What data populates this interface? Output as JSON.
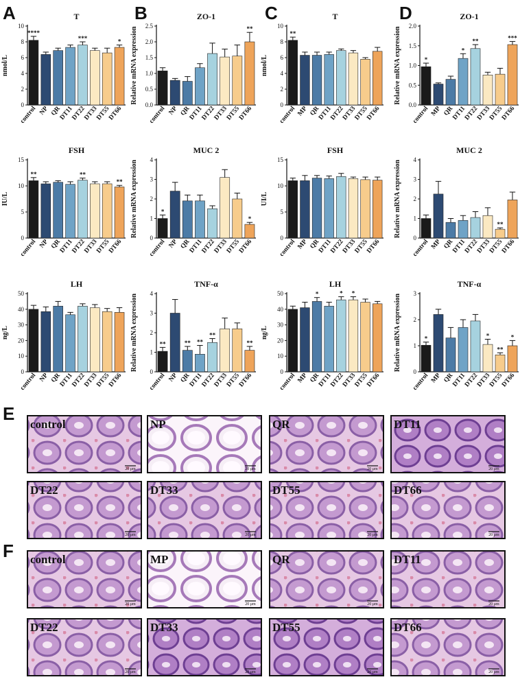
{
  "groups_np": [
    "control",
    "NP",
    "QR",
    "DT11",
    "DT22",
    "DT33",
    "DT55",
    "DT66"
  ],
  "groups_mp": [
    "control",
    "MP",
    "QR",
    "DT11",
    "DT22",
    "DT33",
    "DT55",
    "DT66"
  ],
  "colors": [
    "#1a1a1a",
    "#2d4a72",
    "#4c7ba6",
    "#6fa3c6",
    "#a6d2df",
    "#fbe9c2",
    "#f7cc8c",
    "#eea45a"
  ],
  "panel_letters": [
    "A",
    "B",
    "C",
    "D",
    "E",
    "F"
  ],
  "chart_data": [
    {
      "id": "A-T",
      "type": "bar",
      "title": "T",
      "ylabel": "nmol/L",
      "ylim": [
        0,
        10
      ],
      "yticks": [
        0,
        2,
        4,
        6,
        8,
        10
      ],
      "groupset": "np",
      "values": [
        8.2,
        6.4,
        6.9,
        7.3,
        7.6,
        6.9,
        6.6,
        7.3
      ],
      "errors": [
        0.5,
        0.3,
        0.3,
        0.3,
        0.4,
        0.3,
        0.6,
        0.3
      ],
      "stars": [
        "****",
        "",
        "",
        "",
        "***",
        "",
        "",
        "*"
      ]
    },
    {
      "id": "A-FSH",
      "type": "bar",
      "title": "FSH",
      "ylabel": "IU/L",
      "ylim": [
        0,
        15
      ],
      "yticks": [
        0,
        5,
        10,
        15
      ],
      "groupset": "np",
      "values": [
        11.0,
        10.4,
        10.7,
        10.3,
        11.1,
        10.4,
        10.4,
        9.8
      ],
      "errors": [
        0.6,
        0.4,
        0.3,
        0.5,
        0.4,
        0.4,
        0.4,
        0.3
      ],
      "stars": [
        "**",
        "",
        "",
        "",
        "**",
        "",
        "",
        "**"
      ]
    },
    {
      "id": "A-LH",
      "type": "bar",
      "title": "LH",
      "ylabel": "ng/L",
      "ylim": [
        0,
        50
      ],
      "yticks": [
        0,
        10,
        20,
        30,
        40,
        50
      ],
      "groupset": "np",
      "values": [
        40,
        38.5,
        42,
        36.5,
        42,
        41,
        38.5,
        38
      ],
      "errors": [
        2.5,
        3,
        3,
        1.5,
        1.5,
        2,
        2,
        3
      ],
      "stars": [
        "",
        "",
        "",
        "",
        "",
        "",
        "",
        ""
      ]
    },
    {
      "id": "B-ZO1",
      "type": "bar",
      "title": "ZO-1",
      "ylabel": "Relative mRNA expression",
      "ylim": [
        0,
        2.5
      ],
      "yticks": [
        0.0,
        0.5,
        1.0,
        1.5,
        2.0,
        2.5
      ],
      "groupset": "np",
      "values": [
        1.08,
        0.78,
        0.75,
        1.18,
        1.63,
        1.52,
        1.55,
        2.0
      ],
      "errors": [
        0.1,
        0.06,
        0.15,
        0.13,
        0.33,
        0.25,
        0.35,
        0.3
      ],
      "stars": [
        "",
        "",
        "",
        "",
        "",
        "",
        "",
        "**"
      ]
    },
    {
      "id": "B-MUC2",
      "type": "bar",
      "title": "MUC 2",
      "ylabel": "Relative mRNA expression",
      "ylim": [
        0,
        4
      ],
      "yticks": [
        0,
        1,
        2,
        3,
        4
      ],
      "groupset": "np",
      "values": [
        1.0,
        2.4,
        1.9,
        1.9,
        1.5,
        3.1,
        2.0,
        0.7
      ],
      "errors": [
        0.18,
        0.45,
        0.3,
        0.3,
        0.15,
        0.4,
        0.3,
        0.1
      ],
      "stars": [
        "*",
        "",
        "",
        "",
        "",
        "",
        "",
        "*"
      ]
    },
    {
      "id": "B-TNF",
      "type": "bar",
      "title": "TNF-α",
      "ylabel": "Relative mRNA expression",
      "ylim": [
        0,
        4
      ],
      "yticks": [
        0,
        1,
        2,
        3,
        4
      ],
      "groupset": "np",
      "values": [
        1.05,
        3.0,
        1.1,
        0.9,
        1.5,
        2.2,
        2.2,
        1.1
      ],
      "errors": [
        0.2,
        0.7,
        0.2,
        0.45,
        0.2,
        0.55,
        0.3,
        0.2
      ],
      "stars": [
        "**",
        "",
        "**",
        "**",
        "**",
        "",
        "",
        "**"
      ]
    },
    {
      "id": "C-T",
      "type": "bar",
      "title": "T",
      "ylabel": "nmol/L",
      "ylim": [
        0,
        10
      ],
      "yticks": [
        0,
        2,
        4,
        6,
        8,
        10
      ],
      "groupset": "mp",
      "values": [
        8.2,
        6.3,
        6.3,
        6.4,
        6.9,
        6.6,
        5.8,
        6.8
      ],
      "errors": [
        0.4,
        0.4,
        0.4,
        0.3,
        0.2,
        0.3,
        0.2,
        0.5
      ],
      "stars": [
        "**",
        "",
        "",
        "",
        "",
        "",
        "",
        ""
      ]
    },
    {
      "id": "C-FSH",
      "type": "bar",
      "title": "FSH",
      "ylabel": "UI/L",
      "ylim": [
        0,
        15
      ],
      "yticks": [
        0,
        5,
        10,
        15
      ],
      "groupset": "mp",
      "values": [
        11.0,
        11.0,
        11.5,
        11.4,
        11.8,
        11.4,
        11.2,
        11.1
      ],
      "errors": [
        0.5,
        1.0,
        0.5,
        0.5,
        0.6,
        0.3,
        0.5,
        0.6
      ],
      "stars": [
        "",
        "",
        "",
        "",
        "",
        "",
        "",
        ""
      ]
    },
    {
      "id": "C-LH",
      "type": "bar",
      "title": "LH",
      "ylabel": "ng/L",
      "ylim": [
        0,
        50
      ],
      "yticks": [
        0,
        10,
        20,
        30,
        40,
        50
      ],
      "groupset": "mp",
      "values": [
        40,
        41,
        45,
        42,
        46,
        46,
        44.5,
        43.5
      ],
      "errors": [
        2,
        3.5,
        2.5,
        2.5,
        2,
        2,
        2,
        1.5
      ],
      "stars": [
        "",
        "",
        "*",
        "",
        "*",
        "*",
        "",
        ""
      ]
    },
    {
      "id": "D-ZO1",
      "type": "bar",
      "title": "ZO-1",
      "ylabel": "Relative mRNA expression",
      "ylim": [
        0,
        2.0
      ],
      "yticks": [
        0.0,
        0.5,
        1.0,
        1.5,
        2.0
      ],
      "groupset": "mp",
      "values": [
        0.97,
        0.53,
        0.65,
        1.18,
        1.43,
        0.76,
        0.78,
        1.53
      ],
      "errors": [
        0.09,
        0.03,
        0.08,
        0.12,
        0.1,
        0.07,
        0.15,
        0.08
      ],
      "stars": [
        "*",
        "",
        "",
        "*",
        "**",
        "",
        "",
        "***"
      ]
    },
    {
      "id": "D-MUC2",
      "type": "bar",
      "title": "MUC 2",
      "ylabel": "Relative mRNA expression",
      "ylim": [
        0,
        4
      ],
      "yticks": [
        0,
        1,
        2,
        3,
        4
      ],
      "groupset": "mp",
      "values": [
        1.0,
        2.25,
        0.8,
        0.9,
        1.05,
        1.15,
        0.45,
        1.95
      ],
      "errors": [
        0.18,
        0.65,
        0.2,
        0.25,
        0.3,
        0.4,
        0.07,
        0.4
      ],
      "stars": [
        "",
        "",
        "",
        "",
        "",
        "",
        "**",
        ""
      ]
    },
    {
      "id": "D-TNF",
      "type": "bar",
      "title": "TNF-α",
      "ylabel": "Relative mRNA expression",
      "ylim": [
        0,
        3
      ],
      "yticks": [
        0,
        1,
        2,
        3
      ],
      "groupset": "mp",
      "values": [
        1.02,
        2.2,
        1.3,
        1.7,
        1.95,
        1.05,
        0.65,
        1.0
      ],
      "errors": [
        0.12,
        0.2,
        0.4,
        0.3,
        0.25,
        0.2,
        0.08,
        0.2
      ],
      "stars": [
        "*",
        "",
        "",
        "",
        "",
        "*",
        "**",
        "*"
      ]
    }
  ],
  "histology": {
    "E": {
      "labels": [
        "control",
        "NP",
        "QR",
        "DT11",
        "DT22",
        "DT33",
        "DT55",
        "DT66"
      ]
    },
    "F": {
      "labels": [
        "control",
        "MP",
        "QR",
        "DT11",
        "DT22",
        "DT33",
        "DT55",
        "DT66"
      ]
    },
    "scale_text": "20 μm"
  }
}
